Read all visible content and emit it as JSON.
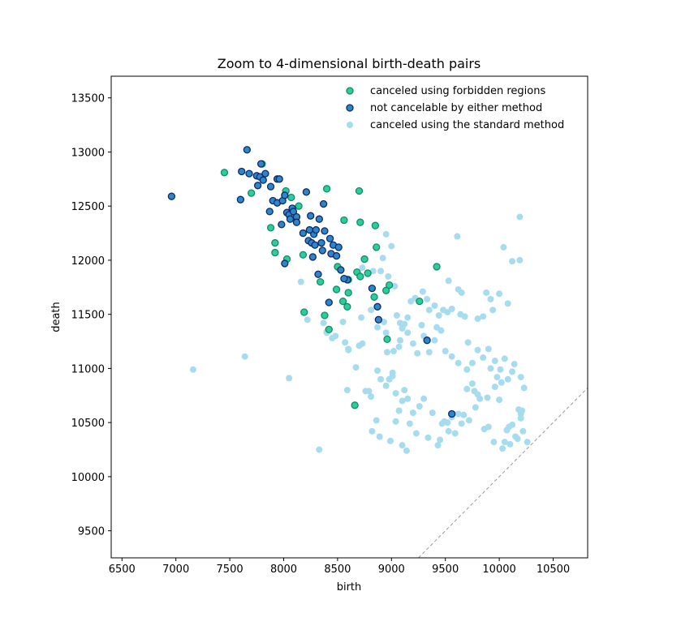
{
  "chart_data": {
    "type": "scatter",
    "title": "Zoom to 4-dimensional birth-death pairs",
    "xlabel": "birth",
    "ylabel": "death",
    "xlim": [
      6400,
      10820
    ],
    "ylim": [
      9250,
      13700
    ],
    "xticks": [
      6500,
      7000,
      7500,
      8000,
      8500,
      9000,
      9500,
      10000,
      10500
    ],
    "yticks": [
      9500,
      10000,
      10500,
      11000,
      11500,
      12000,
      12500,
      13000,
      13500
    ],
    "grid": false,
    "legend_position": "top-right",
    "diagonal": {
      "style": "dashed",
      "color": "#999999",
      "from": [
        9250,
        9250
      ],
      "to": [
        10820,
        10820
      ]
    },
    "series": [
      {
        "name": "canceled using forbidden regions",
        "fill": "#2ecc9b",
        "edge": "#0e8e6a",
        "points": [
          [
            7450,
            12810
          ],
          [
            7700,
            12620
          ],
          [
            7800,
            12890
          ],
          [
            8020,
            12640
          ],
          [
            8070,
            12580
          ],
          [
            8140,
            12500
          ],
          [
            7880,
            12300
          ],
          [
            7920,
            12160
          ],
          [
            7920,
            12070
          ],
          [
            8030,
            12010
          ],
          [
            8180,
            12050
          ],
          [
            8400,
            12660
          ],
          [
            8560,
            12370
          ],
          [
            8700,
            12640
          ],
          [
            8710,
            12350
          ],
          [
            8850,
            12320
          ],
          [
            8860,
            12120
          ],
          [
            8750,
            12010
          ],
          [
            8500,
            11940
          ],
          [
            8680,
            11890
          ],
          [
            8710,
            11850
          ],
          [
            8780,
            11880
          ],
          [
            8340,
            11800
          ],
          [
            8600,
            11820
          ],
          [
            8600,
            11700
          ],
          [
            8490,
            11730
          ],
          [
            8950,
            11720
          ],
          [
            8980,
            11770
          ],
          [
            8840,
            11660
          ],
          [
            9260,
            11620
          ],
          [
            8550,
            11620
          ],
          [
            8590,
            11570
          ],
          [
            8190,
            11520
          ],
          [
            8380,
            11490
          ],
          [
            8420,
            11360
          ],
          [
            8960,
            11270
          ],
          [
            9420,
            11940
          ],
          [
            8660,
            10660
          ]
        ]
      },
      {
        "name": "not cancelable by either method",
        "fill": "#2e86c8",
        "edge": "#0a2a6a",
        "points": [
          [
            6960,
            12590
          ],
          [
            7610,
            12820
          ],
          [
            7600,
            12560
          ],
          [
            7660,
            13020
          ],
          [
            7680,
            12800
          ],
          [
            7750,
            12780
          ],
          [
            7780,
            12770
          ],
          [
            7790,
            12890
          ],
          [
            7810,
            12740
          ],
          [
            7830,
            12800
          ],
          [
            7760,
            12690
          ],
          [
            7880,
            12680
          ],
          [
            7940,
            12750
          ],
          [
            7960,
            12750
          ],
          [
            7900,
            12550
          ],
          [
            7940,
            12530
          ],
          [
            7990,
            12550
          ],
          [
            8010,
            12600
          ],
          [
            7870,
            12450
          ],
          [
            8030,
            12440
          ],
          [
            8050,
            12420
          ],
          [
            8080,
            12480
          ],
          [
            8090,
            12450
          ],
          [
            8120,
            12400
          ],
          [
            8060,
            12380
          ],
          [
            8120,
            12350
          ],
          [
            7980,
            12330
          ],
          [
            8210,
            12630
          ],
          [
            8250,
            12410
          ],
          [
            8280,
            12240
          ],
          [
            8300,
            12280
          ],
          [
            8330,
            12380
          ],
          [
            8370,
            12520
          ],
          [
            8240,
            12280
          ],
          [
            8180,
            12250
          ],
          [
            8230,
            12180
          ],
          [
            8260,
            12160
          ],
          [
            8290,
            12140
          ],
          [
            8350,
            12160
          ],
          [
            8380,
            12270
          ],
          [
            8430,
            12200
          ],
          [
            8460,
            12140
          ],
          [
            8510,
            12120
          ],
          [
            8440,
            12060
          ],
          [
            8490,
            12040
          ],
          [
            8360,
            12090
          ],
          [
            8010,
            11970
          ],
          [
            8270,
            12030
          ],
          [
            8320,
            11870
          ],
          [
            8530,
            11910
          ],
          [
            8590,
            11820
          ],
          [
            8820,
            11740
          ],
          [
            8870,
            11570
          ],
          [
            8880,
            11450
          ],
          [
            8420,
            11610
          ],
          [
            8560,
            11830
          ],
          [
            9330,
            11260
          ],
          [
            9560,
            10580
          ]
        ]
      },
      {
        "name": "canceled using the standard method",
        "fill": "#a7dcef",
        "edge": "none",
        "points": [
          [
            7160,
            10990
          ],
          [
            7640,
            11110
          ],
          [
            8050,
            10910
          ],
          [
            8330,
            10250
          ],
          [
            8160,
            11800
          ],
          [
            8220,
            11450
          ],
          [
            8370,
            11420
          ],
          [
            8400,
            11340
          ],
          [
            8450,
            11280
          ],
          [
            8480,
            11300
          ],
          [
            8550,
            11430
          ],
          [
            8700,
            11210
          ],
          [
            8730,
            11230
          ],
          [
            8720,
            11470
          ],
          [
            8600,
            11170
          ],
          [
            8670,
            11010
          ],
          [
            8810,
            11540
          ],
          [
            8870,
            11380
          ],
          [
            8950,
            11330
          ],
          [
            8930,
            11430
          ],
          [
            8960,
            11150
          ],
          [
            9020,
            11160
          ],
          [
            9080,
            11260
          ],
          [
            9070,
            11200
          ],
          [
            9120,
            11410
          ],
          [
            9050,
            11490
          ],
          [
            9100,
            11370
          ],
          [
            9150,
            11330
          ],
          [
            9200,
            11230
          ],
          [
            9240,
            11140
          ],
          [
            9280,
            11400
          ],
          [
            9300,
            11300
          ],
          [
            9350,
            11150
          ],
          [
            9400,
            11260
          ],
          [
            9420,
            11380
          ],
          [
            9460,
            11350
          ],
          [
            9500,
            11160
          ],
          [
            9440,
            11490
          ],
          [
            9520,
            11520
          ],
          [
            9560,
            11110
          ],
          [
            9620,
            11050
          ],
          [
            9640,
            11500
          ],
          [
            9680,
            11480
          ],
          [
            9710,
            11240
          ],
          [
            9700,
            10990
          ],
          [
            9750,
            11050
          ],
          [
            9800,
            11170
          ],
          [
            9850,
            11100
          ],
          [
            9900,
            11180
          ],
          [
            9920,
            11000
          ],
          [
            9960,
            11070
          ],
          [
            9980,
            10920
          ],
          [
            10010,
            10990
          ],
          [
            10050,
            11090
          ],
          [
            10080,
            10900
          ],
          [
            10120,
            10970
          ],
          [
            10140,
            11040
          ],
          [
            10200,
            10920
          ],
          [
            10230,
            10820
          ],
          [
            10210,
            10610
          ],
          [
            10200,
            10580
          ],
          [
            10260,
            10320
          ],
          [
            10170,
            10350
          ],
          [
            10150,
            10370
          ],
          [
            10100,
            10300
          ],
          [
            10070,
            10430
          ],
          [
            10090,
            10460
          ],
          [
            10030,
            10260
          ],
          [
            9950,
            10320
          ],
          [
            9900,
            10460
          ],
          [
            9860,
            10440
          ],
          [
            9780,
            10640
          ],
          [
            9800,
            10760
          ],
          [
            9750,
            10860
          ],
          [
            9700,
            10810
          ],
          [
            9670,
            10570
          ],
          [
            9650,
            10490
          ],
          [
            9620,
            10580
          ],
          [
            9590,
            10400
          ],
          [
            9560,
            10550
          ],
          [
            9520,
            10500
          ],
          [
            9490,
            10510
          ],
          [
            9470,
            10490
          ],
          [
            9450,
            10340
          ],
          [
            9430,
            10290
          ],
          [
            9380,
            10590
          ],
          [
            9340,
            10360
          ],
          [
            9300,
            10720
          ],
          [
            9260,
            10650
          ],
          [
            9230,
            10400
          ],
          [
            9200,
            10590
          ],
          [
            9170,
            10490
          ],
          [
            9150,
            10720
          ],
          [
            9120,
            10800
          ],
          [
            9100,
            10700
          ],
          [
            9070,
            10610
          ],
          [
            9040,
            10510
          ],
          [
            9040,
            10770
          ],
          [
            9010,
            10930
          ],
          [
            8980,
            10900
          ],
          [
            8950,
            10840
          ],
          [
            8900,
            10900
          ],
          [
            8870,
            10980
          ],
          [
            8810,
            10740
          ],
          [
            8790,
            10790
          ],
          [
            8760,
            10790
          ],
          [
            8820,
            10420
          ],
          [
            8890,
            10370
          ],
          [
            8990,
            10330
          ],
          [
            9100,
            10290
          ],
          [
            9140,
            10240
          ],
          [
            9010,
            10960
          ],
          [
            8860,
            10520
          ],
          [
            8590,
            10800
          ],
          [
            8600,
            11180
          ],
          [
            8570,
            11240
          ],
          [
            8400,
            11330
          ],
          [
            9800,
            11460
          ],
          [
            9850,
            11480
          ],
          [
            9880,
            11700
          ],
          [
            9920,
            11640
          ],
          [
            9940,
            11540
          ],
          [
            10000,
            11690
          ],
          [
            10040,
            12120
          ],
          [
            10080,
            11600
          ],
          [
            10120,
            11990
          ],
          [
            10190,
            12000
          ],
          [
            10190,
            12400
          ],
          [
            9610,
            12220
          ],
          [
            9650,
            11700
          ],
          [
            9560,
            11550
          ],
          [
            9480,
            11540
          ],
          [
            9400,
            11580
          ],
          [
            9350,
            11540
          ],
          [
            9330,
            11640
          ],
          [
            9290,
            11710
          ],
          [
            9220,
            11650
          ],
          [
            9180,
            11620
          ],
          [
            9150,
            11470
          ],
          [
            9080,
            11420
          ],
          [
            9030,
            11760
          ],
          [
            8970,
            11850
          ],
          [
            8920,
            12020
          ],
          [
            8900,
            11900
          ],
          [
            8950,
            12240
          ],
          [
            9000,
            12130
          ],
          [
            8730,
            11930
          ],
          [
            8830,
            11900
          ],
          [
            9530,
            11810
          ],
          [
            9620,
            11730
          ],
          [
            10200,
            10540
          ],
          [
            10220,
            10420
          ],
          [
            10050,
            10320
          ],
          [
            9530,
            10420
          ],
          [
            9720,
            10520
          ],
          [
            9770,
            10790
          ],
          [
            9820,
            10720
          ],
          [
            9890,
            10730
          ],
          [
            9960,
            10830
          ],
          [
            10000,
            10710
          ],
          [
            10020,
            10870
          ],
          [
            10120,
            10480
          ],
          [
            10180,
            10620
          ]
        ]
      }
    ],
    "legend": [
      "canceled using forbidden regions",
      "not cancelable by either method",
      "canceled using the standard method"
    ]
  }
}
